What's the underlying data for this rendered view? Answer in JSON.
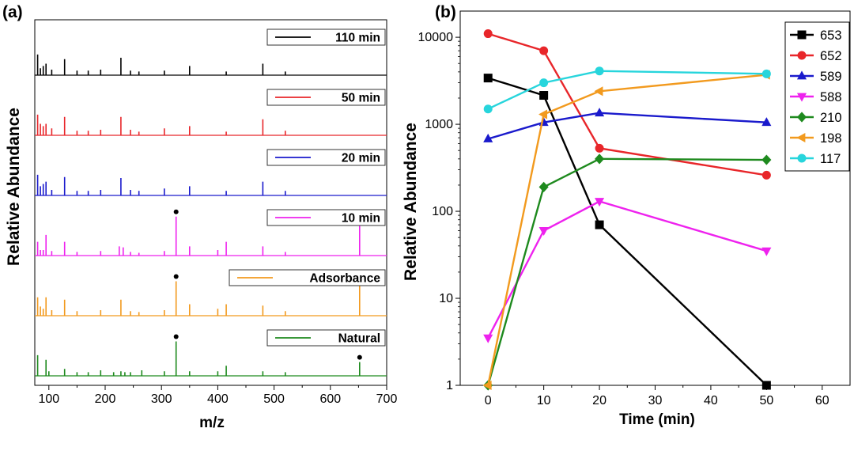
{
  "chart_data": [
    {
      "panel_label": "(a)",
      "type": "line",
      "xlabel": "m/z",
      "ylabel": "Relative Abundance",
      "xlim": [
        75,
        700
      ],
      "xticks": [
        100,
        200,
        300,
        400,
        500,
        600,
        700
      ],
      "series": [
        {
          "name": "110 min",
          "color": "#000000",
          "peaks": [
            [
              80,
              0.45
            ],
            [
              85,
              0.15
            ],
            [
              90,
              0.2
            ],
            [
              95,
              0.25
            ],
            [
              105,
              0.12
            ],
            [
              128,
              0.35
            ],
            [
              150,
              0.1
            ],
            [
              170,
              0.1
            ],
            [
              192,
              0.12
            ],
            [
              228,
              0.38
            ],
            [
              245,
              0.1
            ],
            [
              260,
              0.08
            ],
            [
              305,
              0.1
            ],
            [
              350,
              0.2
            ],
            [
              415,
              0.08
            ],
            [
              480,
              0.25
            ],
            [
              520,
              0.08
            ]
          ],
          "marked": []
        },
        {
          "name": "50 min",
          "color": "#e8262a",
          "peaks": [
            [
              80,
              0.45
            ],
            [
              85,
              0.25
            ],
            [
              90,
              0.2
            ],
            [
              95,
              0.25
            ],
            [
              105,
              0.15
            ],
            [
              128,
              0.4
            ],
            [
              150,
              0.1
            ],
            [
              170,
              0.1
            ],
            [
              192,
              0.12
            ],
            [
              228,
              0.4
            ],
            [
              245,
              0.12
            ],
            [
              260,
              0.08
            ],
            [
              305,
              0.15
            ],
            [
              350,
              0.2
            ],
            [
              415,
              0.08
            ],
            [
              480,
              0.35
            ],
            [
              520,
              0.1
            ]
          ],
          "marked": []
        },
        {
          "name": "20 min",
          "color": "#1a1acc",
          "peaks": [
            [
              80,
              0.45
            ],
            [
              85,
              0.2
            ],
            [
              90,
              0.25
            ],
            [
              95,
              0.3
            ],
            [
              105,
              0.12
            ],
            [
              128,
              0.4
            ],
            [
              150,
              0.1
            ],
            [
              170,
              0.1
            ],
            [
              192,
              0.12
            ],
            [
              228,
              0.38
            ],
            [
              245,
              0.12
            ],
            [
              260,
              0.1
            ],
            [
              305,
              0.15
            ],
            [
              350,
              0.2
            ],
            [
              415,
              0.1
            ],
            [
              480,
              0.3
            ],
            [
              520,
              0.1
            ]
          ],
          "marked": []
        },
        {
          "name": "10 min",
          "color": "#ee22ee",
          "peaks": [
            [
              80,
              0.3
            ],
            [
              85,
              0.12
            ],
            [
              90,
              0.12
            ],
            [
              95,
              0.45
            ],
            [
              105,
              0.1
            ],
            [
              128,
              0.3
            ],
            [
              150,
              0.08
            ],
            [
              192,
              0.1
            ],
            [
              225,
              0.2
            ],
            [
              232,
              0.18
            ],
            [
              245,
              0.08
            ],
            [
              260,
              0.06
            ],
            [
              305,
              0.1
            ],
            [
              326,
              0.85
            ],
            [
              350,
              0.2
            ],
            [
              400,
              0.12
            ],
            [
              415,
              0.3
            ],
            [
              480,
              0.2
            ],
            [
              520,
              0.08
            ],
            [
              652,
              0.8
            ]
          ],
          "marked": [
            326,
            652
          ]
        },
        {
          "name": "Adsorbance",
          "color": "#f29a1e",
          "peaks": [
            [
              80,
              0.4
            ],
            [
              85,
              0.2
            ],
            [
              90,
              0.15
            ],
            [
              95,
              0.4
            ],
            [
              105,
              0.12
            ],
            [
              128,
              0.35
            ],
            [
              150,
              0.1
            ],
            [
              192,
              0.12
            ],
            [
              228,
              0.35
            ],
            [
              245,
              0.1
            ],
            [
              260,
              0.08
            ],
            [
              305,
              0.12
            ],
            [
              326,
              0.75
            ],
            [
              350,
              0.25
            ],
            [
              400,
              0.15
            ],
            [
              415,
              0.25
            ],
            [
              480,
              0.22
            ],
            [
              520,
              0.1
            ],
            [
              652,
              0.75
            ]
          ],
          "marked": [
            326,
            652
          ]
        },
        {
          "name": "Natural",
          "color": "#1e8a1e",
          "peaks": [
            [
              80,
              0.45
            ],
            [
              95,
              0.35
            ],
            [
              100,
              0.1
            ],
            [
              128,
              0.15
            ],
            [
              150,
              0.08
            ],
            [
              170,
              0.08
            ],
            [
              192,
              0.12
            ],
            [
              215,
              0.08
            ],
            [
              228,
              0.1
            ],
            [
              235,
              0.08
            ],
            [
              245,
              0.08
            ],
            [
              265,
              0.12
            ],
            [
              305,
              0.1
            ],
            [
              326,
              0.75
            ],
            [
              350,
              0.1
            ],
            [
              400,
              0.1
            ],
            [
              415,
              0.22
            ],
            [
              480,
              0.1
            ],
            [
              520,
              0.08
            ],
            [
              652,
              0.3
            ]
          ],
          "marked": [
            326,
            652
          ]
        }
      ]
    },
    {
      "panel_label": "(b)",
      "type": "line",
      "xlabel": "Time (min)",
      "ylabel": "Relative Abundance",
      "yscale": "log",
      "xlim": [
        -5,
        65
      ],
      "ylim": [
        1,
        20000
      ],
      "xticks": [
        0,
        10,
        20,
        30,
        40,
        50,
        60
      ],
      "yticks": [
        1,
        10,
        100,
        1000,
        10000
      ],
      "yticklabels": [
        "1",
        "10",
        "100",
        "1000",
        "10000"
      ],
      "legend": "top-right",
      "x": [
        0,
        10,
        20,
        50
      ],
      "series": [
        {
          "name": "653",
          "color": "#000000",
          "marker": "square",
          "values": [
            3400,
            2150,
            70,
            1
          ]
        },
        {
          "name": "652",
          "color": "#e8262a",
          "marker": "circle",
          "values": [
            11000,
            7000,
            530,
            260
          ]
        },
        {
          "name": "589",
          "color": "#1a1acc",
          "marker": "triangle",
          "values": [
            680,
            1050,
            1350,
            1050
          ]
        },
        {
          "name": "588",
          "color": "#ee22ee",
          "marker": "tri-down",
          "values": [
            3.5,
            60,
            130,
            35
          ]
        },
        {
          "name": "210",
          "color": "#1e8a1e",
          "marker": "diamond",
          "values": [
            1,
            190,
            400,
            390
          ]
        },
        {
          "name": "198",
          "color": "#f29a1e",
          "marker": "tri-left",
          "values": [
            1,
            1300,
            2400,
            3700
          ]
        },
        {
          "name": "117",
          "color": "#27d5dc",
          "marker": "circle",
          "values": [
            1500,
            3000,
            4100,
            3800
          ]
        }
      ]
    }
  ]
}
